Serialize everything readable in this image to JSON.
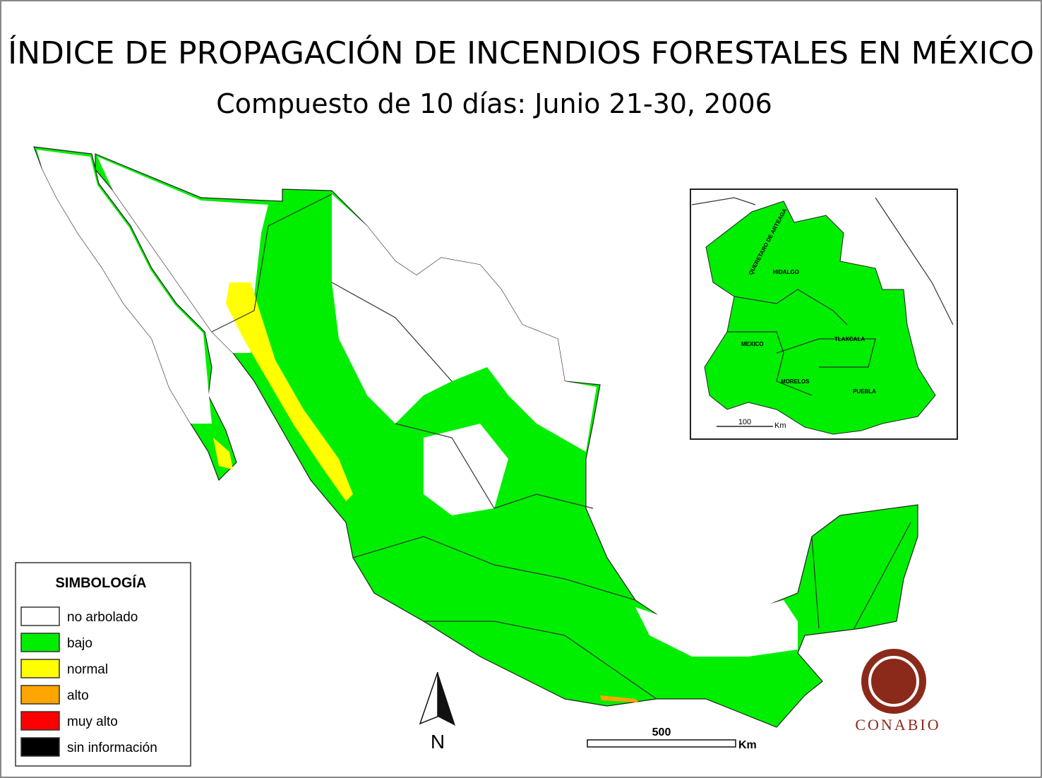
{
  "title": "ÍNDICE DE PROPAGACIÓN DE INCENDIOS FORESTALES EN MÉXICO",
  "subtitle": "Compuesto de 10 días: Junio 21-30, 2006",
  "legend": {
    "title": "SIMBOLOGÍA",
    "items": [
      {
        "label": "no arbolado",
        "color": "#ffffff"
      },
      {
        "label": "bajo",
        "color": "#00ee00"
      },
      {
        "label": "normal",
        "color": "#ffff00"
      },
      {
        "label": "alto",
        "color": "#ffa500"
      },
      {
        "label": "muy alto",
        "color": "#ff0000"
      },
      {
        "label": "sin información",
        "color": "#000000"
      }
    ]
  },
  "inset": {
    "labels": [
      "QUERETARO DE ARTEAGA",
      "HIDALGO",
      "MEXICO",
      "TLAXCALA",
      "MORELOS",
      "PUEBLA"
    ],
    "scale": {
      "value": 100,
      "unit": "Km"
    }
  },
  "scale": {
    "value": 500,
    "unit": "Km"
  },
  "north": "N",
  "logo": "CONABIO"
}
